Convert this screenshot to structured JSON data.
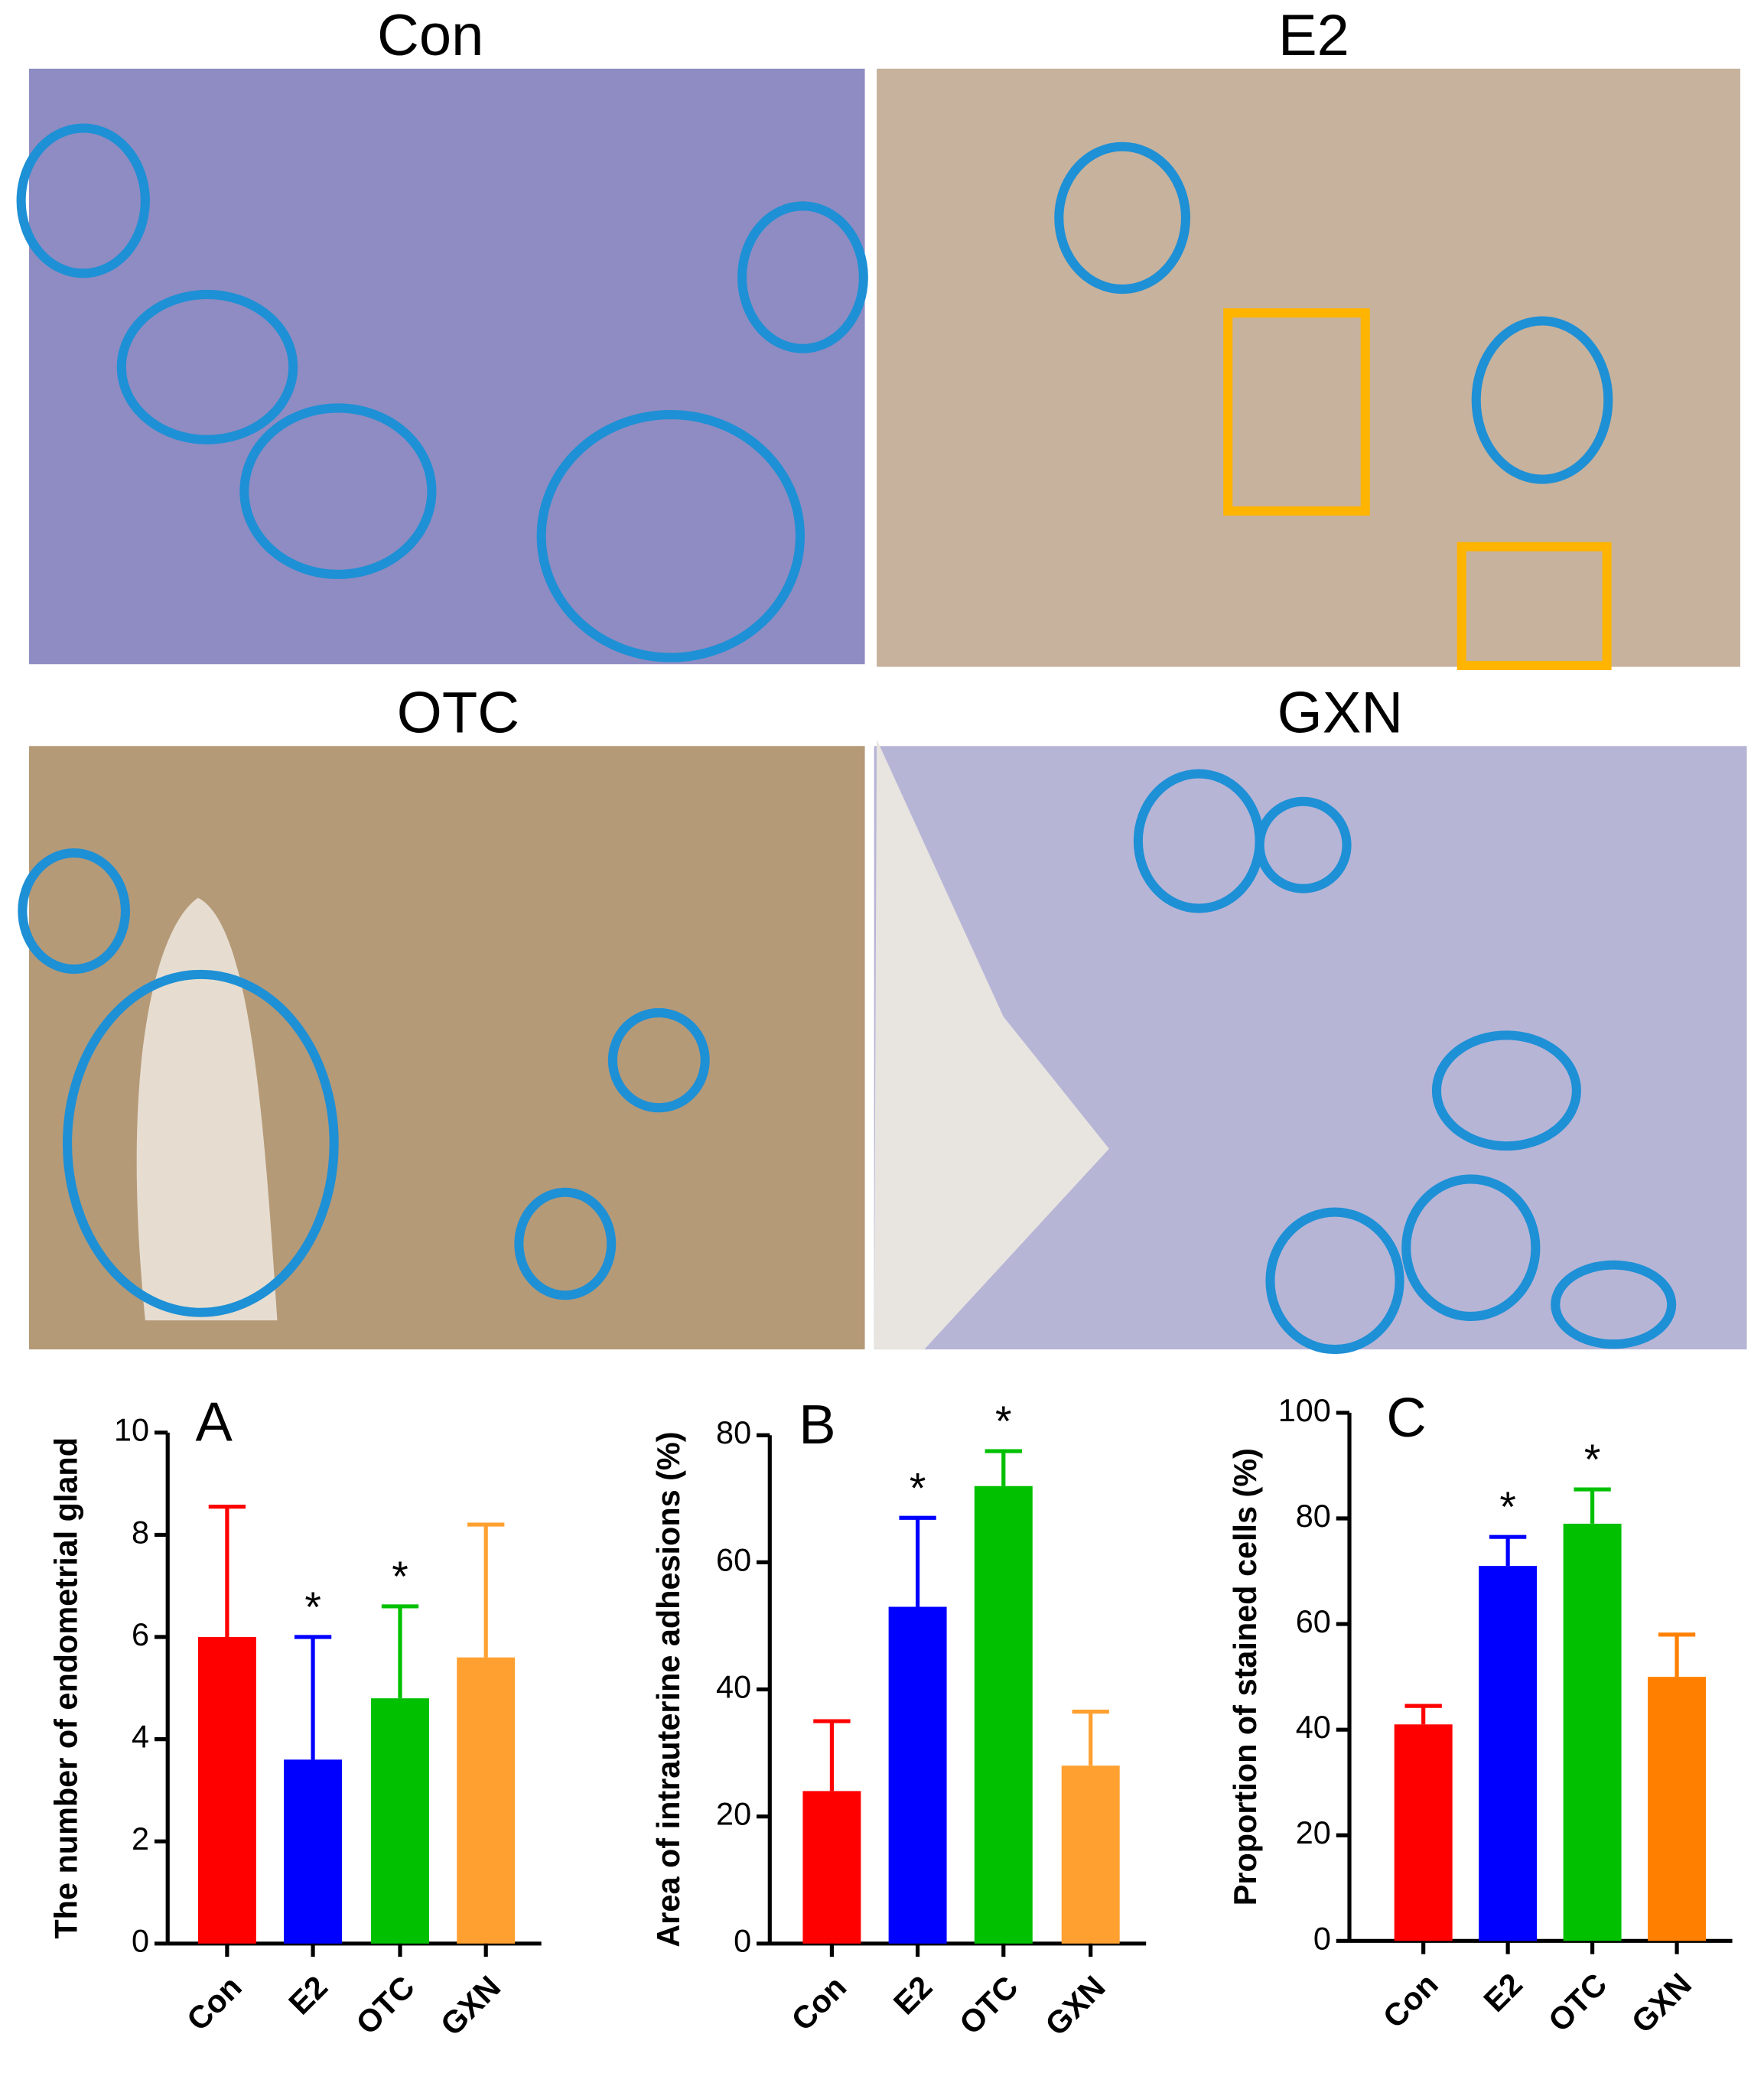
{
  "panels": {
    "titles": [
      "Con",
      "E2",
      "OTC",
      "GXN"
    ]
  },
  "chart_data": [
    {
      "type": "bar",
      "panel_label": "A",
      "y_label": "The number of endometrial gland",
      "categories": [
        "Con",
        "E2",
        "OTC",
        "GXN"
      ],
      "values": [
        6,
        3.6,
        4.8,
        5.6
      ],
      "errors": [
        2.55,
        2.4,
        1.8,
        2.6
      ],
      "colors": [
        "#ff0000",
        "#0000ff",
        "#00c000",
        "#ffa030"
      ],
      "significance": [
        null,
        "*",
        "*",
        null
      ],
      "ylim": [
        0,
        10
      ],
      "yticks": [
        0,
        2,
        4,
        6,
        8,
        10
      ]
    },
    {
      "type": "bar",
      "panel_label": "B",
      "y_label": "Area of intrauterine adhesions (%)",
      "categories": [
        "Con",
        "E2",
        "OTC",
        "GXN"
      ],
      "values": [
        24,
        53,
        72,
        28
      ],
      "errors": [
        11,
        14,
        5.5,
        8.5
      ],
      "colors": [
        "#ff0000",
        "#0000ff",
        "#00c000",
        "#ffa030"
      ],
      "significance": [
        null,
        "*",
        "*",
        null
      ],
      "ylim": [
        0,
        80
      ],
      "yticks": [
        0,
        20,
        40,
        60,
        80
      ]
    },
    {
      "type": "bar",
      "panel_label": "C",
      "y_label": "Proportion of stained cells (%)",
      "categories": [
        "Con",
        "E2",
        "OTC",
        "GXN"
      ],
      "values": [
        41,
        71,
        79,
        50
      ],
      "errors": [
        3.5,
        5.5,
        6.5,
        8
      ],
      "colors": [
        "#ff0000",
        "#0000ff",
        "#00c000",
        "#ff8000"
      ],
      "significance": [
        null,
        "*",
        "*",
        null
      ],
      "ylim": [
        0,
        100
      ],
      "yticks": [
        0,
        20,
        40,
        60,
        80,
        100
      ]
    }
  ]
}
